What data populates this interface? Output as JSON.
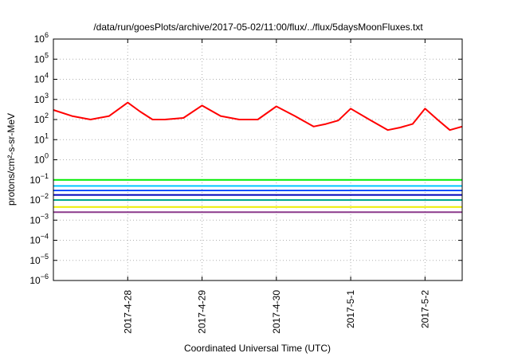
{
  "chart_data": {
    "type": "line",
    "title": "/data/run/goesPlots/archive/2017-05-02/11:00/flux/../flux/5daysMoonFluxes.txt",
    "xlabel": "Coordinated Universal Time (UTC)",
    "ylabel": "protons/cm²-s-sr-MeV",
    "y_scale": "log",
    "y_tick_exponents": [
      -6,
      -5,
      -4,
      -3,
      -2,
      -1,
      0,
      1,
      2,
      3,
      4,
      5,
      6
    ],
    "x_range": [
      "2017-04-27 00:00",
      "2017-05-02 12:00"
    ],
    "x_ticks": [
      "2017-04-28",
      "2017-04-29",
      "2017-04-30",
      "2017-05-01",
      "2017-05-02"
    ],
    "x_tick_labels": [
      "2017-4-28",
      "2017-4-29",
      "2017-4-30",
      "2017-5-1",
      "2017-5-2"
    ],
    "grid": true,
    "series": [
      {
        "color": "#ff0000",
        "x": [
          "2017-04-27 00:00",
          "2017-04-27 06:00",
          "2017-04-27 12:00",
          "2017-04-27 18:00",
          "2017-04-28 00:00",
          "2017-04-28 04:00",
          "2017-04-28 08:00",
          "2017-04-28 12:00",
          "2017-04-28 18:00",
          "2017-04-29 00:00",
          "2017-04-29 06:00",
          "2017-04-29 12:00",
          "2017-04-29 18:00",
          "2017-04-30 00:00",
          "2017-04-30 06:00",
          "2017-04-30 12:00",
          "2017-04-30 16:00",
          "2017-04-30 20:00",
          "2017-05-01 00:00",
          "2017-05-01 06:00",
          "2017-05-01 12:00",
          "2017-05-01 16:00",
          "2017-05-01 20:00",
          "2017-05-02 00:00",
          "2017-05-02 04:00",
          "2017-05-02 08:00",
          "2017-05-02 12:00"
        ],
        "values": [
          300,
          150,
          100,
          150,
          700,
          250,
          100,
          100,
          120,
          500,
          150,
          100,
          100,
          450,
          150,
          45,
          60,
          90,
          350,
          100,
          30,
          40,
          60,
          350,
          100,
          30,
          45
        ]
      },
      {
        "color": "#00ee00",
        "x": [
          "2017-04-27 00:00",
          "2017-05-02 12:00"
        ],
        "values": [
          0.1,
          0.1
        ]
      },
      {
        "color": "#00c8ff",
        "x": [
          "2017-04-27 00:00",
          "2017-05-02 12:00"
        ],
        "values": [
          0.05,
          0.05
        ]
      },
      {
        "color": "#0050ff",
        "x": [
          "2017-04-27 00:00",
          "2017-05-02 12:00"
        ],
        "values": [
          0.03,
          0.03
        ]
      },
      {
        "color": "#0000bb",
        "x": [
          "2017-04-27 00:00",
          "2017-05-02 12:00"
        ],
        "values": [
          0.018,
          0.018
        ]
      },
      {
        "color": "#00a890",
        "x": [
          "2017-04-27 00:00",
          "2017-05-02 12:00"
        ],
        "values": [
          0.01,
          0.01
        ]
      },
      {
        "color": "#eeee00",
        "x": [
          "2017-04-27 00:00",
          "2017-05-02 12:00"
        ],
        "values": [
          0.0045,
          0.0045
        ]
      },
      {
        "color": "#8b3a8b",
        "x": [
          "2017-04-27 00:00",
          "2017-05-02 12:00"
        ],
        "values": [
          0.0025,
          0.0025
        ]
      }
    ]
  }
}
